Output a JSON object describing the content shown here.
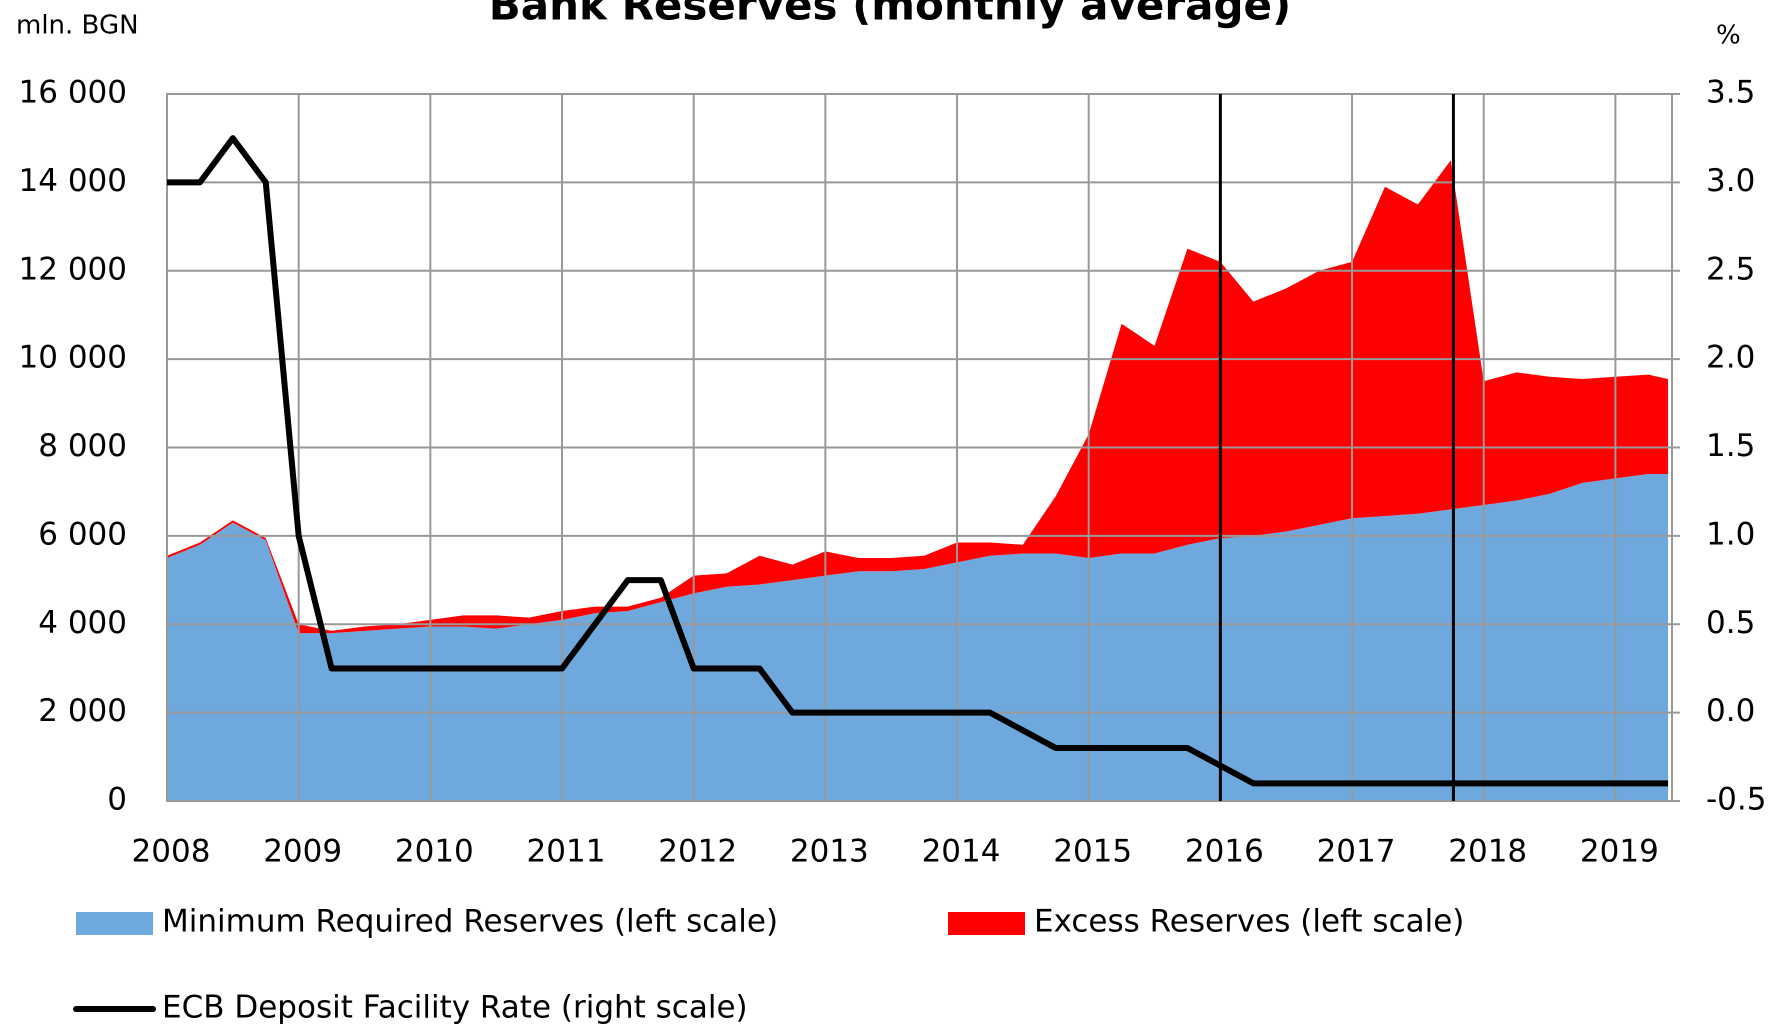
{
  "chart_data": {
    "type": "stacked-area-line",
    "title": "Bank Reserves (monthly average)",
    "y_label": "mln. BGN",
    "y2_label": "%",
    "x": [
      2008,
      2008.25,
      2008.5,
      2008.75,
      2009,
      2009.25,
      2009.5,
      2009.75,
      2010,
      2010.25,
      2010.5,
      2010.75,
      2011,
      2011.25,
      2011.5,
      2011.75,
      2012,
      2012.25,
      2012.5,
      2012.75,
      2013,
      2013.25,
      2013.5,
      2013.75,
      2014,
      2014.25,
      2014.5,
      2014.75,
      2015,
      2015.25,
      2015.5,
      2015.75,
      2016,
      2016.25,
      2016.5,
      2016.75,
      2017,
      2017.25,
      2017.5,
      2017.75,
      2018,
      2018.25,
      2018.5,
      2018.75,
      2019,
      2019.25,
      2019.4
    ],
    "series": [
      {
        "name": "Minimum Required Reserves (left scale)",
        "color": "#6fa8dc",
        "stack": "reserves",
        "values": [
          5500,
          5800,
          6300,
          5900,
          3800,
          3800,
          3850,
          3900,
          3950,
          3950,
          3900,
          4000,
          4100,
          4250,
          4300,
          4500,
          4700,
          4850,
          4900,
          5000,
          5100,
          5200,
          5200,
          5250,
          5400,
          5550,
          5600,
          5600,
          5500,
          5600,
          5600,
          5800,
          5950,
          6000,
          6100,
          6250,
          6400,
          6450,
          6500,
          6600,
          6700,
          6800,
          6950,
          7200,
          7300,
          7400,
          7400
        ]
      },
      {
        "name": "Excess Reserves (left scale)",
        "color": "#ff0000",
        "stack": "reserves",
        "values": [
          50,
          50,
          50,
          50,
          200,
          50,
          100,
          100,
          150,
          250,
          300,
          150,
          200,
          150,
          100,
          100,
          400,
          300,
          650,
          350,
          550,
          300,
          300,
          300,
          450,
          300,
          200,
          1300,
          2800,
          5200,
          4700,
          6700,
          6250,
          5300,
          5500,
          5750,
          5800,
          7450,
          7000,
          7900,
          2800,
          2900,
          2650,
          2350,
          2300,
          2250,
          2150
        ]
      },
      {
        "name": "ECB Deposit Facility Rate (right scale)",
        "color": "#000000",
        "axis": "y2",
        "values": [
          3.0,
          3.0,
          3.25,
          3.0,
          1.0,
          0.25,
          0.25,
          0.25,
          0.25,
          0.25,
          0.25,
          0.25,
          0.25,
          0.5,
          0.75,
          0.75,
          0.25,
          0.25,
          0.25,
          0.0,
          0.0,
          0.0,
          0.0,
          0.0,
          0.0,
          0.0,
          -0.1,
          -0.2,
          -0.2,
          -0.2,
          -0.2,
          -0.2,
          -0.3,
          -0.4,
          -0.4,
          -0.4,
          -0.4,
          -0.4,
          -0.4,
          -0.4,
          -0.4,
          -0.4,
          -0.4,
          -0.4,
          -0.4,
          -0.4,
          -0.4
        ]
      }
    ],
    "xlim": [
      2008,
      2019.43
    ],
    "xticks": [
      2008,
      2009,
      2010,
      2011,
      2012,
      2013,
      2014,
      2015,
      2016,
      2017,
      2018,
      2019
    ],
    "ylim": [
      0,
      16000
    ],
    "yticks": [
      0,
      {
        "value": 2000,
        "label": "2 000"
      },
      {
        "value": 4000,
        "label": "4 000"
      },
      {
        "value": 6000,
        "label": "6 000"
      },
      {
        "value": 8000,
        "label": "8 000"
      },
      {
        "value": 10000,
        "label": "10 000"
      },
      {
        "value": 12000,
        "label": "12 000"
      },
      {
        "value": 14000,
        "label": "14 000"
      },
      {
        "value": 16000,
        "label": "16 000"
      }
    ],
    "y2lim": [
      -0.5,
      3.5
    ],
    "y2ticks": [
      -0.5,
      {
        "value": 0,
        "label": "0.0"
      },
      0.5,
      {
        "value": 1,
        "label": "1.0"
      },
      1.5,
      {
        "value": 2,
        "label": "2.0"
      },
      2.5,
      {
        "value": 3,
        "label": "3.0"
      },
      3.5
    ],
    "vlines": [
      2016,
      2017.77
    ],
    "grid": true,
    "legend": "bottom"
  }
}
